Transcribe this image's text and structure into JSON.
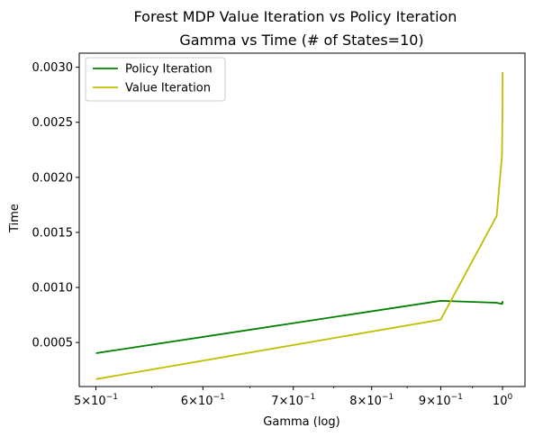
{
  "figure": {
    "suptitle": "Forest MDP Value Iteration vs Policy Iteration"
  },
  "chart_data": {
    "type": "line",
    "title": "Gamma vs Time (# of States=10)",
    "xlabel": "Gamma (log)",
    "ylabel": "Time",
    "xscale": "log",
    "xlim": [
      0.486,
      1.039
    ],
    "ylim": [
      0.0001,
      0.003128
    ],
    "xticks": [
      {
        "value": 0.5,
        "mantissa": "5",
        "exponent": "−1"
      },
      {
        "value": 0.6,
        "mantissa": "6",
        "exponent": "−1"
      },
      {
        "value": 0.7,
        "mantissa": "7",
        "exponent": "−1"
      },
      {
        "value": 0.8,
        "mantissa": "8",
        "exponent": "−1"
      },
      {
        "value": 0.9,
        "mantissa": "9",
        "exponent": "−1"
      },
      {
        "value": 1.0,
        "mantissa": "10",
        "exponent": "0"
      }
    ],
    "yticks": [
      {
        "value": 0.0005,
        "label": "0.0005"
      },
      {
        "value": 0.001,
        "label": "0.0010"
      },
      {
        "value": 0.0015,
        "label": "0.0015"
      },
      {
        "value": 0.002,
        "label": "0.0020"
      },
      {
        "value": 0.0025,
        "label": "0.0025"
      },
      {
        "value": 0.003,
        "label": "0.0030"
      }
    ],
    "grid": false,
    "legend_position": "upper-left",
    "series": [
      {
        "name": "Policy Iteration",
        "color": "#008000",
        "x": [
          0.5,
          0.9,
          0.99,
          0.999,
          0.9999,
          0.99999
        ],
        "y": [
          0.000403,
          0.000879,
          0.000861,
          0.00085,
          0.00087,
          0.000855
        ]
      },
      {
        "name": "Value Iteration",
        "color": "#bfbf00",
        "x": [
          0.5,
          0.9,
          0.99,
          0.999,
          0.9999,
          0.99999
        ],
        "y": [
          0.000167,
          0.000708,
          0.001649,
          0.002195,
          0.002615,
          0.002955
        ]
      }
    ]
  }
}
